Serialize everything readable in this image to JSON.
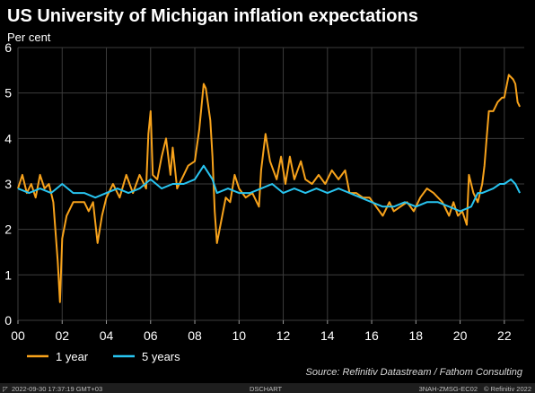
{
  "chart_data": {
    "type": "line",
    "title": "US University of Michigan inflation expectations",
    "unit_label": "Per cent",
    "xlabel": "",
    "ylabel": "",
    "xlim": [
      2000,
      2022.9
    ],
    "ylim": [
      0,
      6
    ],
    "x_ticks": [
      {
        "value": 2000,
        "label": "00"
      },
      {
        "value": 2002,
        "label": "02"
      },
      {
        "value": 2004,
        "label": "04"
      },
      {
        "value": 2006,
        "label": "06"
      },
      {
        "value": 2008,
        "label": "08"
      },
      {
        "value": 2010,
        "label": "10"
      },
      {
        "value": 2012,
        "label": "12"
      },
      {
        "value": 2014,
        "label": "14"
      },
      {
        "value": 2016,
        "label": "16"
      },
      {
        "value": 2018,
        "label": "18"
      },
      {
        "value": 2020,
        "label": "20"
      },
      {
        "value": 2022,
        "label": "22"
      }
    ],
    "y_ticks": [
      0,
      1,
      2,
      3,
      4,
      5,
      6
    ],
    "grid": true,
    "legend_position": "bottom-left",
    "series": [
      {
        "name": "1 year",
        "color": "#f7a21b",
        "points": [
          [
            2000.0,
            2.9
          ],
          [
            2000.2,
            3.2
          ],
          [
            2000.4,
            2.8
          ],
          [
            2000.6,
            3.0
          ],
          [
            2000.8,
            2.7
          ],
          [
            2001.0,
            3.2
          ],
          [
            2001.2,
            2.9
          ],
          [
            2001.4,
            3.0
          ],
          [
            2001.6,
            2.6
          ],
          [
            2001.8,
            1.3
          ],
          [
            2001.9,
            0.4
          ],
          [
            2002.0,
            1.8
          ],
          [
            2002.2,
            2.3
          ],
          [
            2002.5,
            2.6
          ],
          [
            2002.8,
            2.6
          ],
          [
            2003.0,
            2.6
          ],
          [
            2003.2,
            2.4
          ],
          [
            2003.4,
            2.6
          ],
          [
            2003.6,
            1.7
          ],
          [
            2003.8,
            2.3
          ],
          [
            2004.0,
            2.7
          ],
          [
            2004.3,
            3.0
          ],
          [
            2004.6,
            2.7
          ],
          [
            2004.9,
            3.2
          ],
          [
            2005.2,
            2.8
          ],
          [
            2005.5,
            3.2
          ],
          [
            2005.8,
            2.9
          ],
          [
            2005.9,
            4.1
          ],
          [
            2006.0,
            4.6
          ],
          [
            2006.1,
            3.2
          ],
          [
            2006.3,
            3.1
          ],
          [
            2006.5,
            3.6
          ],
          [
            2006.7,
            4.0
          ],
          [
            2006.9,
            3.2
          ],
          [
            2007.0,
            3.8
          ],
          [
            2007.2,
            2.9
          ],
          [
            2007.5,
            3.2
          ],
          [
            2007.7,
            3.4
          ],
          [
            2008.0,
            3.5
          ],
          [
            2008.2,
            4.2
          ],
          [
            2008.4,
            5.2
          ],
          [
            2008.5,
            5.1
          ],
          [
            2008.7,
            4.4
          ],
          [
            2008.8,
            3.6
          ],
          [
            2008.9,
            2.4
          ],
          [
            2009.0,
            1.7
          ],
          [
            2009.2,
            2.2
          ],
          [
            2009.4,
            2.7
          ],
          [
            2009.6,
            2.6
          ],
          [
            2009.8,
            3.2
          ],
          [
            2010.0,
            2.9
          ],
          [
            2010.3,
            2.7
          ],
          [
            2010.6,
            2.8
          ],
          [
            2010.9,
            2.5
          ],
          [
            2011.0,
            3.3
          ],
          [
            2011.2,
            4.1
          ],
          [
            2011.4,
            3.5
          ],
          [
            2011.7,
            3.1
          ],
          [
            2011.9,
            3.6
          ],
          [
            2012.1,
            3.0
          ],
          [
            2012.3,
            3.6
          ],
          [
            2012.5,
            3.1
          ],
          [
            2012.8,
            3.5
          ],
          [
            2013.0,
            3.1
          ],
          [
            2013.3,
            3.0
          ],
          [
            2013.6,
            3.2
          ],
          [
            2013.9,
            3.0
          ],
          [
            2014.2,
            3.3
          ],
          [
            2014.5,
            3.1
          ],
          [
            2014.8,
            3.3
          ],
          [
            2015.0,
            2.8
          ],
          [
            2015.3,
            2.8
          ],
          [
            2015.6,
            2.7
          ],
          [
            2015.9,
            2.7
          ],
          [
            2016.2,
            2.5
          ],
          [
            2016.5,
            2.3
          ],
          [
            2016.8,
            2.6
          ],
          [
            2017.0,
            2.4
          ],
          [
            2017.3,
            2.5
          ],
          [
            2017.6,
            2.6
          ],
          [
            2017.9,
            2.4
          ],
          [
            2018.2,
            2.7
          ],
          [
            2018.5,
            2.9
          ],
          [
            2018.8,
            2.8
          ],
          [
            2019.0,
            2.7
          ],
          [
            2019.2,
            2.6
          ],
          [
            2019.5,
            2.3
          ],
          [
            2019.7,
            2.6
          ],
          [
            2019.9,
            2.3
          ],
          [
            2020.1,
            2.4
          ],
          [
            2020.3,
            2.1
          ],
          [
            2020.4,
            3.2
          ],
          [
            2020.6,
            2.8
          ],
          [
            2020.8,
            2.6
          ],
          [
            2021.0,
            3.0
          ],
          [
            2021.1,
            3.4
          ],
          [
            2021.2,
            4.0
          ],
          [
            2021.3,
            4.6
          ],
          [
            2021.5,
            4.6
          ],
          [
            2021.7,
            4.8
          ],
          [
            2021.9,
            4.9
          ],
          [
            2022.0,
            4.9
          ],
          [
            2022.2,
            5.4
          ],
          [
            2022.4,
            5.3
          ],
          [
            2022.5,
            5.2
          ],
          [
            2022.6,
            4.8
          ],
          [
            2022.7,
            4.7
          ]
        ]
      },
      {
        "name": "5 years",
        "color": "#28c4f0",
        "points": [
          [
            2000.0,
            2.9
          ],
          [
            2000.5,
            2.8
          ],
          [
            2001.0,
            2.9
          ],
          [
            2001.5,
            2.8
          ],
          [
            2002.0,
            3.0
          ],
          [
            2002.5,
            2.8
          ],
          [
            2003.0,
            2.8
          ],
          [
            2003.5,
            2.7
          ],
          [
            2004.0,
            2.8
          ],
          [
            2004.5,
            2.9
          ],
          [
            2005.0,
            2.8
          ],
          [
            2005.5,
            2.9
          ],
          [
            2006.0,
            3.1
          ],
          [
            2006.5,
            2.9
          ],
          [
            2007.0,
            3.0
          ],
          [
            2007.5,
            3.0
          ],
          [
            2008.0,
            3.1
          ],
          [
            2008.4,
            3.4
          ],
          [
            2008.8,
            3.1
          ],
          [
            2009.0,
            2.8
          ],
          [
            2009.5,
            2.9
          ],
          [
            2010.0,
            2.8
          ],
          [
            2010.5,
            2.8
          ],
          [
            2011.0,
            2.9
          ],
          [
            2011.5,
            3.0
          ],
          [
            2012.0,
            2.8
          ],
          [
            2012.5,
            2.9
          ],
          [
            2013.0,
            2.8
          ],
          [
            2013.5,
            2.9
          ],
          [
            2014.0,
            2.8
          ],
          [
            2014.5,
            2.9
          ],
          [
            2015.0,
            2.8
          ],
          [
            2015.5,
            2.7
          ],
          [
            2016.0,
            2.6
          ],
          [
            2016.5,
            2.5
          ],
          [
            2017.0,
            2.5
          ],
          [
            2017.5,
            2.6
          ],
          [
            2018.0,
            2.5
          ],
          [
            2018.5,
            2.6
          ],
          [
            2019.0,
            2.6
          ],
          [
            2019.5,
            2.5
          ],
          [
            2020.0,
            2.4
          ],
          [
            2020.5,
            2.5
          ],
          [
            2020.8,
            2.8
          ],
          [
            2021.0,
            2.8
          ],
          [
            2021.5,
            2.9
          ],
          [
            2021.8,
            3.0
          ],
          [
            2022.0,
            3.0
          ],
          [
            2022.3,
            3.1
          ],
          [
            2022.5,
            3.0
          ],
          [
            2022.7,
            2.8
          ]
        ]
      }
    ]
  },
  "source_text": "Source: Refinitiv Datastream / Fathom Consulting",
  "footer": {
    "timestamp": "2022-09-30 17:37:19 GMT+03",
    "program": "DSCHART",
    "code": "3NAH-ZMSG-EC02",
    "copyright": "© Refinitiv 2022"
  }
}
